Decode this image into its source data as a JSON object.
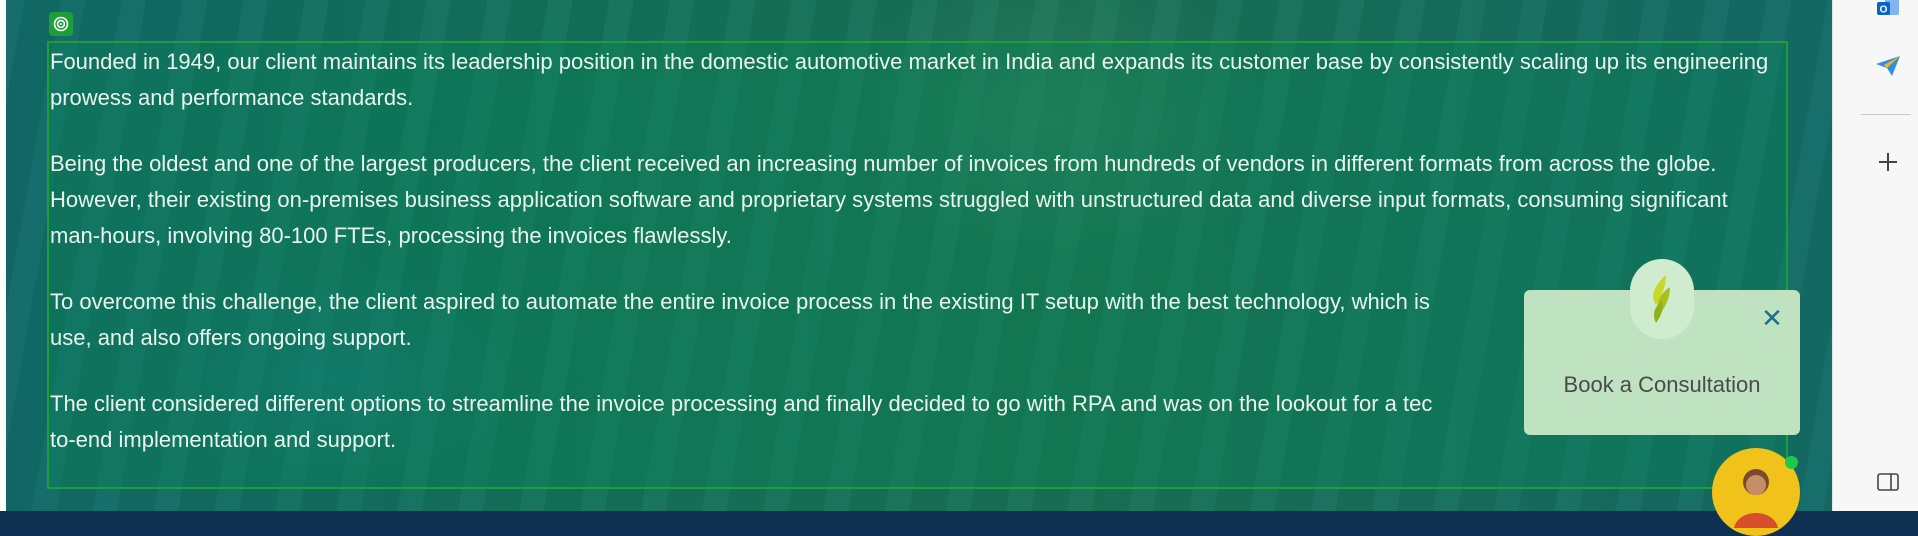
{
  "article": {
    "paragraphs": [
      "Founded in 1949, our client maintains its leadership position in the domestic automotive market in India and expands its customer base by consistently scaling up its engineering prowess and performance standards.",
      "Being the oldest and one of the largest producers, the client received an increasing number of invoices from hundreds of vendors in different formats from across the globe. However, their existing on-premises business application software and proprietary systems struggled with unstructured data and diverse input formats, consuming significant man-hours, involving 80-100 FTEs, processing the invoices flawlessly.",
      "To overcome this challenge, the client aspired to automate the entire invoice process in the existing IT setup with the best technology, which is",
      "The client considered different options to streamline the invoice processing and finally decided to go with RPA and was on the lookout for a tec"
    ],
    "paragraph_continuations": [
      "use, and also offers ongoing support.",
      "to-end implementation and support."
    ]
  },
  "consultation_popup": {
    "title": "Book a Consultation",
    "close_icon": "close-icon",
    "logo_icon": "leaf-logo-icon"
  },
  "overlay_tool": {
    "icon": "target-icon"
  },
  "browser_sidebar": {
    "icons": [
      "outlook-icon",
      "paper-plane-icon",
      "add-icon",
      "sidebar-toggle-icon"
    ]
  },
  "colors": {
    "overlay_green": "#0c7850",
    "selection_border": "#1e9e38",
    "popup_bg": "#bfe3c1",
    "close_color": "#1f6e8a",
    "avatar_bg": "#f0c21a",
    "outlook_blue": "#0a64c8",
    "plane_blue": "#2f8fe8"
  }
}
